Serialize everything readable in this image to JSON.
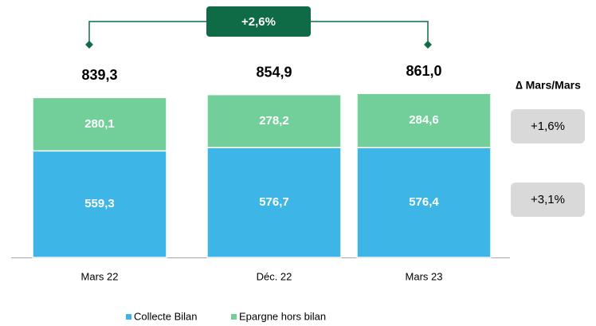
{
  "chart_data": {
    "type": "stacked_bar",
    "categories": [
      "Mars 22",
      "Déc. 22",
      "Mars 23"
    ],
    "series": [
      {
        "name": "Collecte Bilan",
        "color": "#3db5e6",
        "values": [
          559.3,
          576.7,
          576.4
        ],
        "value_labels": [
          "559,3",
          "576,7",
          "576,4"
        ],
        "change": "+3,1%"
      },
      {
        "name": "Epargne hors bilan",
        "color": "#72cf9a",
        "values": [
          280.1,
          278.2,
          284.6
        ],
        "value_labels": [
          "280,1",
          "278,2",
          "284,6"
        ],
        "change": "+1,6%"
      }
    ],
    "totals": [
      839.3,
      854.9,
      861.0
    ],
    "total_labels": [
      "839,3",
      "854,9",
      "861,0"
    ],
    "total_change": "+2,6%",
    "change_header": "∆ Mars/Mars",
    "legend": "bottom"
  }
}
